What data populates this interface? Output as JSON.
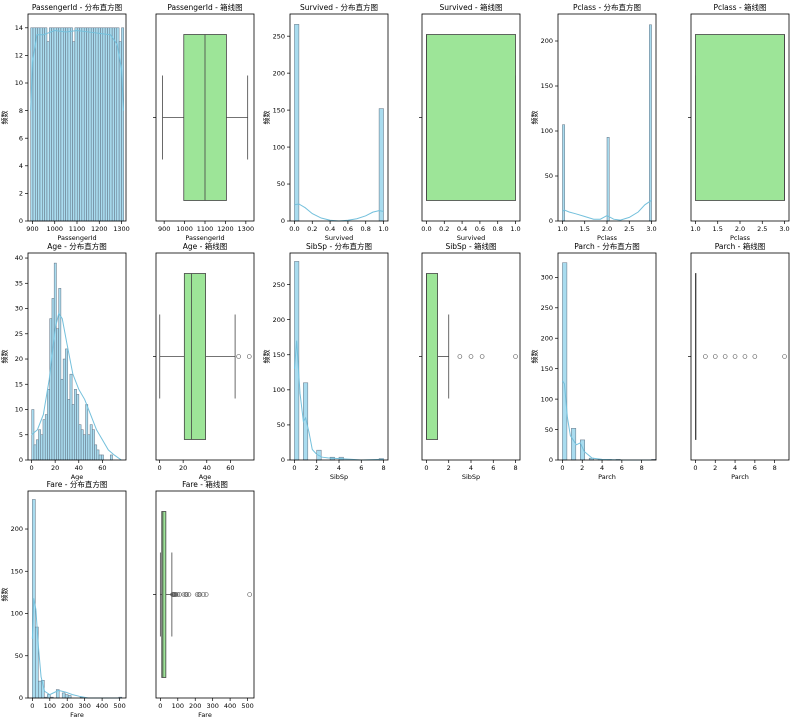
{
  "colors": {
    "hist_fill": "#a9dcef",
    "hist_edge": "#5f6f80",
    "kde": "#74c0dc",
    "box_fill": "#9de598",
    "box_edge": "#444444"
  },
  "chart_data": [
    {
      "type": "histogram",
      "title": "PassengerId - 分布直方图",
      "xlabel": "PassengerId",
      "ylabel": "频数",
      "xlim": [
        880,
        1320
      ],
      "ylim": [
        0,
        15
      ],
      "xticks": [
        900,
        1000,
        1100,
        1200,
        1300
      ],
      "yticks": [
        0,
        2,
        4,
        6,
        8,
        10,
        12,
        14
      ],
      "bins": {
        "start": 892,
        "width": 10.45,
        "values": [
          14,
          14,
          14,
          14,
          14,
          14,
          14,
          13,
          14,
          14,
          14,
          14,
          14,
          14,
          14,
          14,
          14,
          14,
          13,
          14,
          14,
          14,
          14,
          14,
          14,
          14,
          14,
          14,
          14,
          14,
          14,
          14,
          14,
          14,
          14,
          14,
          14,
          14,
          13,
          14
        ]
      },
      "kde": [
        [
          892,
          8
        ],
        [
          900,
          11.5
        ],
        [
          920,
          13.5
        ],
        [
          950,
          13.5
        ],
        [
          1000,
          13.8
        ],
        [
          1050,
          13.7
        ],
        [
          1100,
          13.8
        ],
        [
          1150,
          13.7
        ],
        [
          1200,
          13.6
        ],
        [
          1250,
          13.5
        ],
        [
          1280,
          12.8
        ],
        [
          1300,
          11
        ],
        [
          1309,
          8
        ]
      ]
    },
    {
      "type": "box",
      "title": "PassengerId - 箱线图",
      "xlabel": "PassengerId",
      "xlim": [
        860,
        1340
      ],
      "xticks": [
        900,
        1000,
        1100,
        1200,
        1300
      ],
      "stats": {
        "whislo": 892,
        "q1": 996,
        "med": 1100,
        "q3": 1205,
        "whishi": 1309
      },
      "fliers": []
    },
    {
      "type": "histogram",
      "title": "Survived - 分布直方图",
      "xlabel": "Survived",
      "ylabel": "频数",
      "xlim": [
        -0.05,
        1.05
      ],
      "ylim": [
        0,
        280
      ],
      "xticks": [
        0.0,
        0.2,
        0.4,
        0.6,
        0.8,
        1.0
      ],
      "xtick_labels": [
        "0.0",
        "0.2",
        "0.4",
        "0.6",
        "0.8",
        "1.0"
      ],
      "yticks": [
        0,
        50,
        100,
        150,
        200,
        250
      ],
      "bins": {
        "start": 0,
        "width": 0.05,
        "values": [
          266,
          0,
          0,
          0,
          0,
          0,
          0,
          0,
          0,
          0,
          0,
          0,
          0,
          0,
          0,
          0,
          0,
          0,
          0,
          152
        ]
      },
      "kde": [
        [
          0,
          22
        ],
        [
          0.05,
          23
        ],
        [
          0.12,
          18
        ],
        [
          0.2,
          10
        ],
        [
          0.3,
          4
        ],
        [
          0.4,
          1
        ],
        [
          0.5,
          0
        ],
        [
          0.6,
          1
        ],
        [
          0.7,
          3
        ],
        [
          0.8,
          7
        ],
        [
          0.88,
          12
        ],
        [
          0.95,
          14
        ],
        [
          1,
          13
        ]
      ]
    },
    {
      "type": "box",
      "title": "Survived - 箱线图",
      "xlabel": "Survived",
      "xlim": [
        -0.05,
        1.05
      ],
      "xticks": [
        0.0,
        0.2,
        0.4,
        0.6,
        0.8,
        1.0
      ],
      "xtick_labels": [
        "0.0",
        "0.2",
        "0.4",
        "0.6",
        "0.8",
        "1.0"
      ],
      "stats": {
        "whislo": 0,
        "q1": 0,
        "med": 0,
        "q3": 1,
        "whishi": 1
      },
      "fliers": []
    },
    {
      "type": "histogram",
      "title": "Pclass - 分布直方图",
      "xlabel": "Pclass",
      "ylabel": "频数",
      "xlim": [
        0.9,
        3.1
      ],
      "ylim": [
        0,
        230
      ],
      "xticks": [
        1.0,
        1.5,
        2.0,
        2.5,
        3.0
      ],
      "xtick_labels": [
        "1.0",
        "1.5",
        "2.0",
        "2.5",
        "3.0"
      ],
      "yticks": [
        0,
        50,
        100,
        150,
        200
      ],
      "bins": {
        "start": 1,
        "width": 0.05,
        "values": [
          107,
          0,
          0,
          0,
          0,
          0,
          0,
          0,
          0,
          0,
          0,
          0,
          0,
          0,
          0,
          0,
          0,
          0,
          0,
          0,
          93,
          0,
          0,
          0,
          0,
          0,
          0,
          0,
          0,
          0,
          0,
          0,
          0,
          0,
          0,
          0,
          0,
          0,
          0,
          218
        ]
      },
      "kde": [
        [
          1,
          11
        ],
        [
          1.05,
          12
        ],
        [
          1.15,
          10
        ],
        [
          1.3,
          8
        ],
        [
          1.5,
          5
        ],
        [
          1.7,
          2
        ],
        [
          1.85,
          2
        ],
        [
          2,
          6
        ],
        [
          2.15,
          2
        ],
        [
          2.3,
          1
        ],
        [
          2.5,
          4
        ],
        [
          2.7,
          10
        ],
        [
          2.85,
          18
        ],
        [
          3,
          23
        ]
      ]
    },
    {
      "type": "box",
      "title": "Pclass - 箱线图",
      "xlabel": "Pclass",
      "xlim": [
        0.9,
        3.1
      ],
      "xticks": [
        1.0,
        1.5,
        2.0,
        2.5,
        3.0
      ],
      "xtick_labels": [
        "1.0",
        "1.5",
        "2.0",
        "2.5",
        "3.0"
      ],
      "stats": {
        "whislo": 1,
        "q1": 1,
        "med": 3,
        "q3": 3,
        "whishi": 3
      },
      "fliers": []
    },
    {
      "type": "histogram",
      "title": "Age - 分布直方图",
      "xlabel": "Age",
      "ylabel": "频数",
      "xlim": [
        -3,
        80
      ],
      "ylim": [
        0,
        41
      ],
      "xticks": [
        0,
        20,
        40,
        60
      ],
      "yticks": [
        0,
        5,
        10,
        15,
        20,
        25,
        30,
        35,
        40
      ],
      "bins": {
        "start": 0.17,
        "width": 1.9,
        "values": [
          10,
          3,
          4,
          6,
          5,
          8,
          9,
          14,
          28,
          32,
          39,
          26,
          34,
          16,
          20,
          22,
          12,
          17,
          11,
          14,
          13,
          7,
          6,
          5,
          11,
          5,
          7,
          6,
          3,
          2,
          1,
          1,
          0,
          0,
          0,
          1
        ]
      },
      "kde": [
        [
          0,
          5
        ],
        [
          5,
          6
        ],
        [
          10,
          9
        ],
        [
          15,
          16
        ],
        [
          20,
          26
        ],
        [
          23,
          29
        ],
        [
          26,
          28
        ],
        [
          30,
          23
        ],
        [
          35,
          17
        ],
        [
          40,
          14
        ],
        [
          45,
          12
        ],
        [
          50,
          9
        ],
        [
          55,
          6
        ],
        [
          60,
          4
        ],
        [
          65,
          2
        ],
        [
          70,
          1
        ],
        [
          76,
          0
        ]
      ]
    },
    {
      "type": "box",
      "title": "Age - 箱线图",
      "xlabel": "Age",
      "xlim": [
        -3,
        80
      ],
      "xticks": [
        0,
        20,
        40,
        60
      ],
      "stats": {
        "whislo": 0.17,
        "q1": 21,
        "med": 27,
        "q3": 39,
        "whishi": 64
      },
      "fliers": [
        67,
        76
      ]
    },
    {
      "type": "histogram",
      "title": "SibSp - 分布直方图",
      "xlabel": "SibSp",
      "ylabel": "频数",
      "xlim": [
        -0.4,
        8.4
      ],
      "ylim": [
        0,
        295
      ],
      "xticks": [
        0,
        2,
        4,
        6,
        8
      ],
      "yticks": [
        0,
        50,
        100,
        150,
        200,
        250
      ],
      "bins": {
        "start": 0,
        "width": 0.4,
        "values": [
          283,
          0,
          110,
          0,
          0,
          14,
          0,
          0,
          4,
          0,
          4,
          0,
          0,
          0,
          0,
          0,
          0,
          0,
          0,
          2
        ]
      },
      "kde": [
        [
          0,
          130
        ],
        [
          0.2,
          170
        ],
        [
          0.5,
          95
        ],
        [
          0.8,
          55
        ],
        [
          1,
          60
        ],
        [
          1.3,
          40
        ],
        [
          1.6,
          15
        ],
        [
          2,
          8
        ],
        [
          2.5,
          4
        ],
        [
          3,
          3
        ],
        [
          4,
          2
        ],
        [
          5,
          1
        ],
        [
          6,
          0
        ],
        [
          8,
          1
        ]
      ]
    },
    {
      "type": "box",
      "title": "SibSp - 箱线图",
      "xlabel": "SibSp",
      "xlim": [
        -0.4,
        8.4
      ],
      "xticks": [
        0,
        2,
        4,
        6,
        8
      ],
      "stats": {
        "whislo": 0,
        "q1": 0,
        "med": 0,
        "q3": 1,
        "whishi": 2
      },
      "fliers": [
        3,
        4,
        5,
        8
      ]
    },
    {
      "type": "histogram",
      "title": "Parch - 分布直方图",
      "xlabel": "Parch",
      "ylabel": "频数",
      "xlim": [
        -0.45,
        9.45
      ],
      "ylim": [
        0,
        340
      ],
      "xticks": [
        0,
        2,
        4,
        6,
        8
      ],
      "yticks": [
        0,
        50,
        100,
        150,
        200,
        250,
        300
      ],
      "bins": {
        "start": 0,
        "width": 0.45,
        "values": [
          324,
          0,
          52,
          0,
          33,
          0,
          3,
          0,
          1,
          0,
          1,
          0,
          1,
          0,
          0,
          0,
          0,
          0,
          0,
          0,
          1
        ]
      },
      "kde": [
        [
          0,
          130
        ],
        [
          0.2,
          125
        ],
        [
          0.5,
          70
        ],
        [
          0.8,
          40
        ],
        [
          1,
          35
        ],
        [
          1.4,
          25
        ],
        [
          1.8,
          28
        ],
        [
          2.2,
          14
        ],
        [
          3,
          3
        ],
        [
          4,
          1
        ],
        [
          6,
          0
        ],
        [
          9,
          0
        ]
      ]
    },
    {
      "type": "box",
      "title": "Parch - 箱线图",
      "xlabel": "Parch",
      "xlim": [
        -0.45,
        9.45
      ],
      "xticks": [
        0,
        2,
        4,
        6,
        8
      ],
      "stats": {
        "whislo": 0,
        "q1": 0,
        "med": 0,
        "q3": 0,
        "whishi": 0
      },
      "fliers": [
        1,
        2,
        3,
        4,
        5,
        6,
        9
      ]
    },
    {
      "type": "histogram",
      "title": "Fare - 分布直方图",
      "xlabel": "Fare",
      "ylabel": "频数",
      "xlim": [
        -25,
        537
      ],
      "ylim": [
        0,
        245
      ],
      "xticks": [
        0,
        100,
        200,
        300,
        400,
        500
      ],
      "yticks": [
        0,
        50,
        100,
        150,
        200
      ],
      "bins": {
        "start": 0,
        "width": 17.1,
        "values": [
          235,
          84,
          20,
          21,
          1,
          4,
          1,
          0,
          10,
          0,
          6,
          4,
          3,
          0,
          0,
          0,
          1,
          0,
          0,
          0,
          0,
          0,
          0,
          0,
          0,
          0,
          0,
          0,
          0,
          1
        ]
      },
      "kde": [
        [
          0,
          70
        ],
        [
          8,
          118
        ],
        [
          20,
          105
        ],
        [
          35,
          60
        ],
        [
          50,
          25
        ],
        [
          70,
          8
        ],
        [
          100,
          4
        ],
        [
          150,
          9
        ],
        [
          190,
          7
        ],
        [
          230,
          4
        ],
        [
          270,
          2
        ],
        [
          320,
          0
        ],
        [
          400,
          0
        ],
        [
          512,
          0
        ]
      ]
    },
    {
      "type": "box",
      "title": "Fare - 箱线图",
      "xlabel": "Fare",
      "xlim": [
        -25,
        537
      ],
      "xticks": [
        0,
        100,
        200,
        300,
        400,
        500
      ],
      "stats": {
        "whislo": 0,
        "q1": 8,
        "med": 14.5,
        "q3": 31.5,
        "whishi": 66
      },
      "fliers": [
        70,
        73,
        76,
        79,
        82,
        86,
        90,
        100,
        110,
        135,
        146,
        151,
        164,
        211,
        221,
        227,
        247,
        263,
        512
      ]
    }
  ]
}
